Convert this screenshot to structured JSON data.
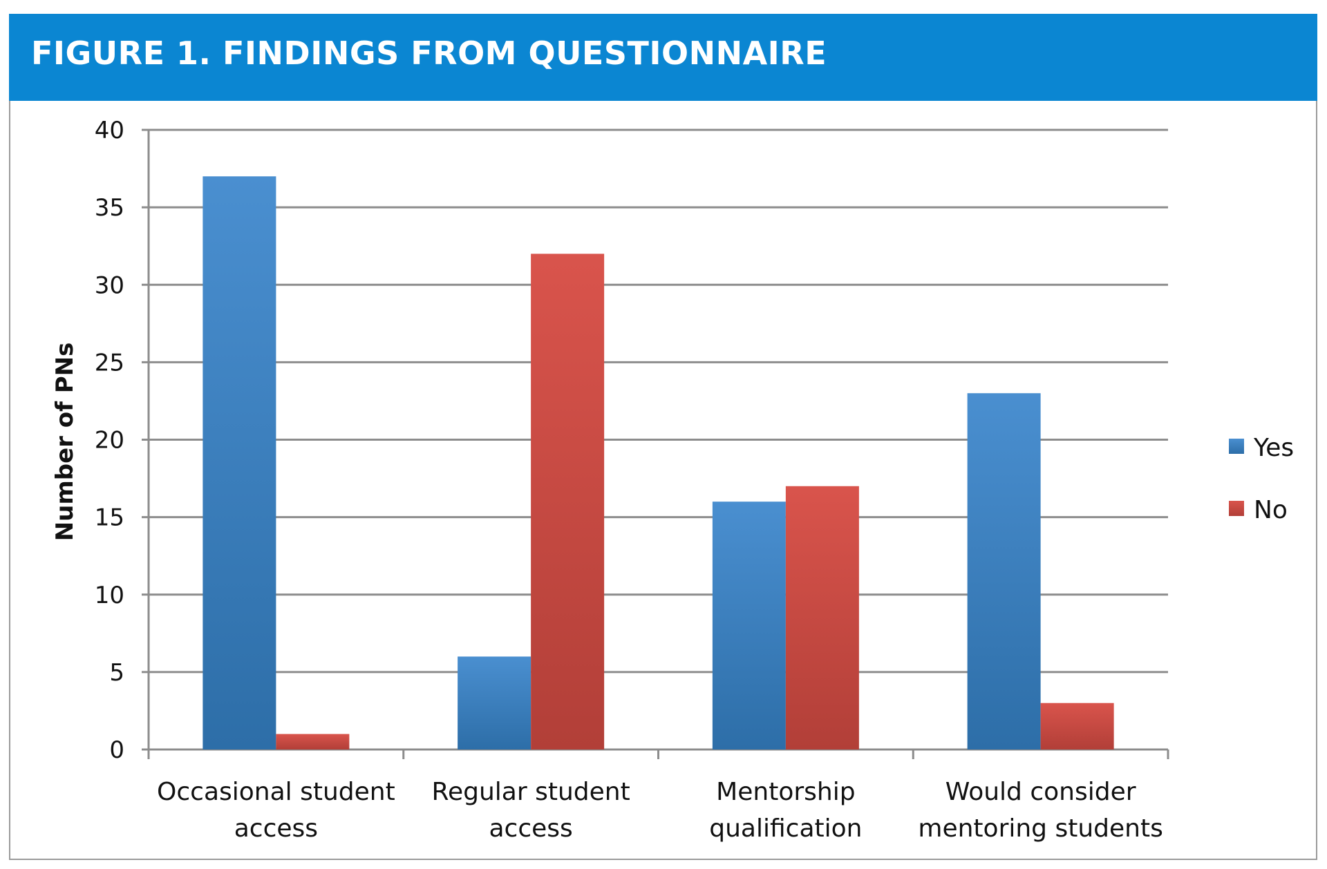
{
  "figure": {
    "title": "FIGURE 1. FINDINGS FROM QUESTIONNAIRE",
    "header_color": "#0b86d2"
  },
  "chart_data": {
    "type": "bar",
    "title": "",
    "xlabel": "",
    "ylabel": "Number of PNs",
    "ylim": [
      0,
      40
    ],
    "yticks": [
      0,
      5,
      10,
      15,
      20,
      25,
      30,
      35,
      40
    ],
    "grid": true,
    "legend_position": "right",
    "categories": [
      [
        "Occasional student",
        "access"
      ],
      [
        "Regular student",
        "access"
      ],
      [
        "Mentorship",
        "qualification"
      ],
      [
        "Would consider",
        "mentoring students"
      ]
    ],
    "series": [
      {
        "name": "Yes",
        "color": "#3d82c4",
        "values": [
          37,
          6,
          16,
          23
        ]
      },
      {
        "name": "No",
        "color": "#cf4d45",
        "values": [
          1,
          32,
          17,
          3
        ]
      }
    ]
  }
}
